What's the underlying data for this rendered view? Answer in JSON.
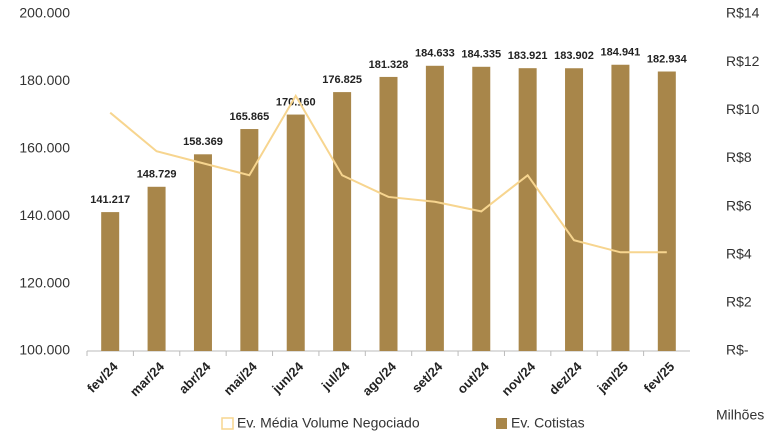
{
  "chart_data": {
    "type": "bar_line",
    "categories": [
      "fev/24",
      "mar/24",
      "abr/24",
      "mai/24",
      "jun/24",
      "jul/24",
      "ago/24",
      "set/24",
      "out/24",
      "nov/24",
      "dez/24",
      "jan/25",
      "fev/25"
    ],
    "series": [
      {
        "name": "Ev. Média Volume Negociado",
        "type": "line",
        "axis": "y2",
        "color": "#f7d58f",
        "values": [
          9.9,
          8.3,
          7.8,
          7.3,
          10.6,
          7.3,
          6.4,
          6.2,
          5.8,
          7.3,
          4.6,
          4.1,
          4.1
        ]
      },
      {
        "name": "Ev. Cotistas",
        "type": "bar",
        "color": "#a8864a",
        "values": [
          141217,
          148729,
          158369,
          165865,
          170160,
          176825,
          181328,
          184633,
          184335,
          183921,
          183902,
          184941,
          182934
        ],
        "value_labels": [
          "141.217",
          "148.729",
          "158.369",
          "165.865",
          "170.160",
          "176.825",
          "181.328",
          "184.633",
          "184.335",
          "183.921",
          "183.902",
          "184.941",
          "182.934"
        ]
      }
    ],
    "ylim": [
      100000,
      200000
    ],
    "yticks": [
      {
        "value": 100000,
        "label": "100.000"
      },
      {
        "value": 120000,
        "label": "120.000"
      },
      {
        "value": 140000,
        "label": "140.000"
      },
      {
        "value": 160000,
        "label": "160.000"
      },
      {
        "value": 180000,
        "label": "180.000"
      },
      {
        "value": 200000,
        "label": "200.000"
      }
    ],
    "y2lim": [
      0,
      14
    ],
    "y2ticks": [
      {
        "value": 0,
        "label": "R$-"
      },
      {
        "value": 2,
        "label": "R$2"
      },
      {
        "value": 4,
        "label": "R$4"
      },
      {
        "value": 6,
        "label": "R$6"
      },
      {
        "value": 8,
        "label": "R$8"
      },
      {
        "value": 10,
        "label": "R$10"
      },
      {
        "value": 12,
        "label": "R$12"
      },
      {
        "value": 14,
        "label": "R$14"
      }
    ],
    "y2_unit": "Milhões",
    "legend": "bottom"
  }
}
